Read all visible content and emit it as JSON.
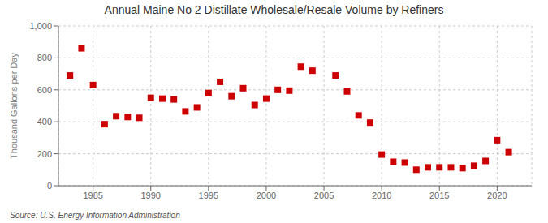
{
  "chart_data": {
    "type": "scatter",
    "title": "Annual Maine No 2 Distillate Wholesale/Resale Volume by Refiners",
    "ylabel": "Thousand Gallons per Day",
    "annotations": [
      "Source: U.S. Energy Information Administration"
    ],
    "x": [
      1983,
      1984,
      1985,
      1986,
      1987,
      1988,
      1989,
      1990,
      1991,
      1992,
      1993,
      1994,
      1995,
      1996,
      1997,
      1998,
      1999,
      2000,
      2001,
      2002,
      2003,
      2004,
      2006,
      2007,
      2008,
      2009,
      2010,
      2011,
      2012,
      2013,
      2014,
      2015,
      2016,
      2017,
      2018,
      2019,
      2020,
      2021
    ],
    "values": [
      690,
      860,
      630,
      385,
      435,
      430,
      425,
      550,
      545,
      540,
      465,
      490,
      580,
      650,
      560,
      610,
      505,
      545,
      600,
      595,
      745,
      720,
      690,
      590,
      440,
      395,
      195,
      150,
      145,
      100,
      115,
      115,
      115,
      110,
      125,
      155,
      285,
      210
    ],
    "color": "#cc0000",
    "marker": "square",
    "xlim": [
      1982,
      2023
    ],
    "ylim": [
      0,
      1000
    ],
    "xticks": [
      1985,
      1990,
      1995,
      2000,
      2005,
      2010,
      2015,
      2020
    ],
    "yticks": [
      0,
      200,
      400,
      600,
      800,
      {
        "value": 1000,
        "label": "1,000"
      }
    ],
    "grid": true
  }
}
